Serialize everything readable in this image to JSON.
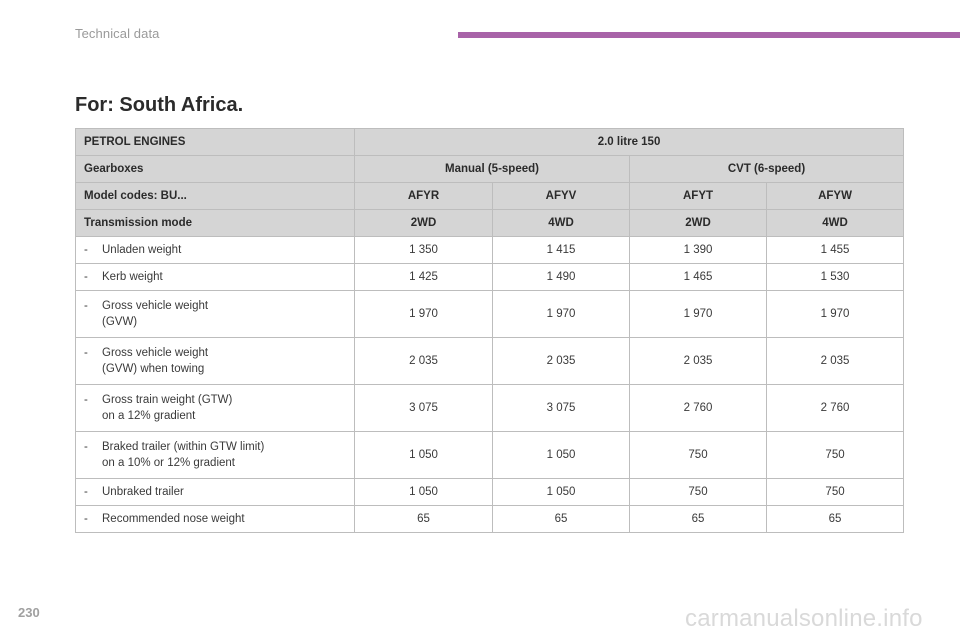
{
  "header": {
    "section_title": "Technical data",
    "accent_color": "#a863a8"
  },
  "heading": "For: South Africa.",
  "table": {
    "header_rows": [
      [
        "PETROL ENGINES",
        "2.0 litre 150"
      ],
      [
        "Gearboxes",
        "Manual (5-speed)",
        "CVT (6-speed)"
      ],
      [
        "Model codes: BU...",
        "AFYR",
        "AFYV",
        "AFYT",
        "AFYW"
      ],
      [
        "Transmission mode",
        "2WD",
        "4WD",
        "2WD",
        "4WD"
      ]
    ],
    "rows": [
      {
        "dash": "-",
        "label": "Unladen weight",
        "values": [
          "1 350",
          "1 415",
          "1 390",
          "1 455"
        ]
      },
      {
        "dash": "-",
        "label": "Kerb weight",
        "values": [
          "1 425",
          "1 490",
          "1 465",
          "1 530"
        ]
      },
      {
        "dash": "-",
        "label": "Gross vehicle weight\n(GVW)",
        "values": [
          "1 970",
          "1 970",
          "1 970",
          "1 970"
        ]
      },
      {
        "dash": "-",
        "label": "Gross vehicle weight\n(GVW) when towing",
        "values": [
          "2 035",
          "2 035",
          "2 035",
          "2 035"
        ]
      },
      {
        "dash": "-",
        "label": "Gross train weight (GTW)\non a 12% gradient",
        "values": [
          "3 075",
          "3 075",
          "2 760",
          "2 760"
        ]
      },
      {
        "dash": "-",
        "label": "Braked trailer (within GTW limit)\non a 10% or 12% gradient",
        "values": [
          "1 050",
          "1 050",
          "750",
          "750"
        ]
      },
      {
        "dash": "-",
        "label": "Unbraked trailer",
        "values": [
          "1 050",
          "1 050",
          "750",
          "750"
        ]
      },
      {
        "dash": "-",
        "label": "Recommended nose weight",
        "values": [
          "65",
          "65",
          "65",
          "65"
        ]
      }
    ]
  },
  "footer": {
    "page_number": "230",
    "watermark": "carmanualsonline.info"
  }
}
